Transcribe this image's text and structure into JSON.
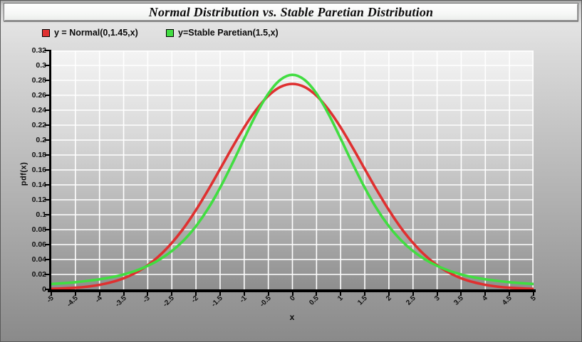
{
  "chart_data": {
    "type": "line",
    "title": "Normal Distribution vs. Stable Paretian Distribution",
    "xlabel": "x",
    "ylabel": "pdf(x)",
    "xlim": [
      -5,
      5
    ],
    "ylim": [
      0,
      0.32
    ],
    "grid": true,
    "grid_color": "#ffffff",
    "legend_position": "top-left",
    "x_tick_labels": [
      "-5",
      "-4.5",
      "-4",
      "-3.5",
      "-3",
      "-2.5",
      "-2",
      "-1.5",
      "-1",
      "-0.5",
      "0",
      "0.5",
      "1",
      "1.5",
      "2",
      "2.5",
      "3",
      "3.5",
      "4",
      "4.5",
      "5"
    ],
    "y_tick_labels": [
      "0.32",
      "0.3",
      "0.28",
      "0.26",
      "0.24",
      "0.22",
      "0.2",
      "0.18",
      "0.16",
      "0.14",
      "0.12",
      "0.1",
      "0.08",
      "0.06",
      "0.04",
      "0.02",
      "0"
    ],
    "x": [
      -5,
      -4.75,
      -4.5,
      -4.25,
      -4,
      -3.75,
      -3.5,
      -3.25,
      -3,
      -2.75,
      -2.5,
      -2.25,
      -2,
      -1.75,
      -1.5,
      -1.25,
      -1,
      -0.75,
      -0.5,
      -0.25,
      0,
      0.25,
      0.5,
      0.75,
      1,
      1.25,
      1.5,
      1.75,
      2,
      2.25,
      2.5,
      2.75,
      3,
      3.25,
      3.5,
      3.75,
      4,
      4.25,
      4.5,
      4.75,
      5
    ],
    "series": [
      {
        "name": "y = Normal(0,1.45,x)",
        "color": "#df3030",
        "values": [
          0.0007,
          0.0013,
          0.0022,
          0.0037,
          0.0061,
          0.0097,
          0.0149,
          0.0223,
          0.0324,
          0.0456,
          0.0623,
          0.0825,
          0.1063,
          0.1329,
          0.1611,
          0.1898,
          0.217,
          0.2407,
          0.2593,
          0.2711,
          0.2752,
          0.2711,
          0.2593,
          0.2407,
          0.217,
          0.1898,
          0.1611,
          0.1329,
          0.1063,
          0.0825,
          0.0623,
          0.0456,
          0.0324,
          0.0223,
          0.0149,
          0.0097,
          0.0061,
          0.0037,
          0.0022,
          0.0013,
          0.0007
        ]
      },
      {
        "name": "y=Stable Paretian(1.5,x)",
        "color": "#41dd41",
        "values": [
          0.0072,
          0.0083,
          0.0096,
          0.0114,
          0.0135,
          0.0163,
          0.02,
          0.025,
          0.0315,
          0.0402,
          0.0514,
          0.066,
          0.0846,
          0.108,
          0.1361,
          0.1681,
          0.202,
          0.2347,
          0.2623,
          0.2808,
          0.2874,
          0.2808,
          0.2623,
          0.2347,
          0.202,
          0.1681,
          0.1361,
          0.108,
          0.0846,
          0.066,
          0.0514,
          0.0402,
          0.0315,
          0.025,
          0.02,
          0.0163,
          0.0135,
          0.0114,
          0.0096,
          0.0083,
          0.0072
        ]
      }
    ]
  }
}
